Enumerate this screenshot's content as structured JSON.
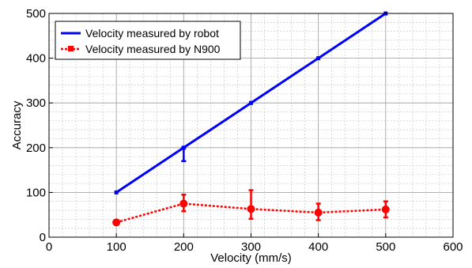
{
  "chart_data": {
    "type": "line",
    "title": "",
    "xlabel": "Velocity (mm/s)",
    "ylabel": "Accuracy",
    "xlim": [
      0,
      600
    ],
    "ylim": [
      0,
      500
    ],
    "xticks": [
      0,
      100,
      200,
      300,
      400,
      500,
      600
    ],
    "yticks": [
      0,
      100,
      200,
      300,
      400,
      500
    ],
    "grid": true,
    "minor_grid": true,
    "legend_position": "top-left",
    "series": [
      {
        "name": "Velocity measured by robot",
        "color": "#0000ff",
        "line_style": "solid",
        "marker": "square",
        "x": [
          100,
          200,
          300,
          400,
          500
        ],
        "y": [
          100,
          200,
          300,
          400,
          500
        ],
        "error_low": [
          0,
          30,
          0,
          0,
          0
        ],
        "error_high": [
          0,
          0,
          0,
          0,
          0
        ]
      },
      {
        "name": "Velocity measured by N900",
        "color": "#ff0000",
        "line_style": "dotted",
        "marker": "circle",
        "x": [
          100,
          200,
          300,
          400,
          500
        ],
        "y": [
          33,
          75,
          63,
          55,
          62
        ],
        "error_low": [
          5,
          17,
          22,
          17,
          18
        ],
        "error_high": [
          5,
          20,
          42,
          20,
          18
        ]
      }
    ]
  }
}
